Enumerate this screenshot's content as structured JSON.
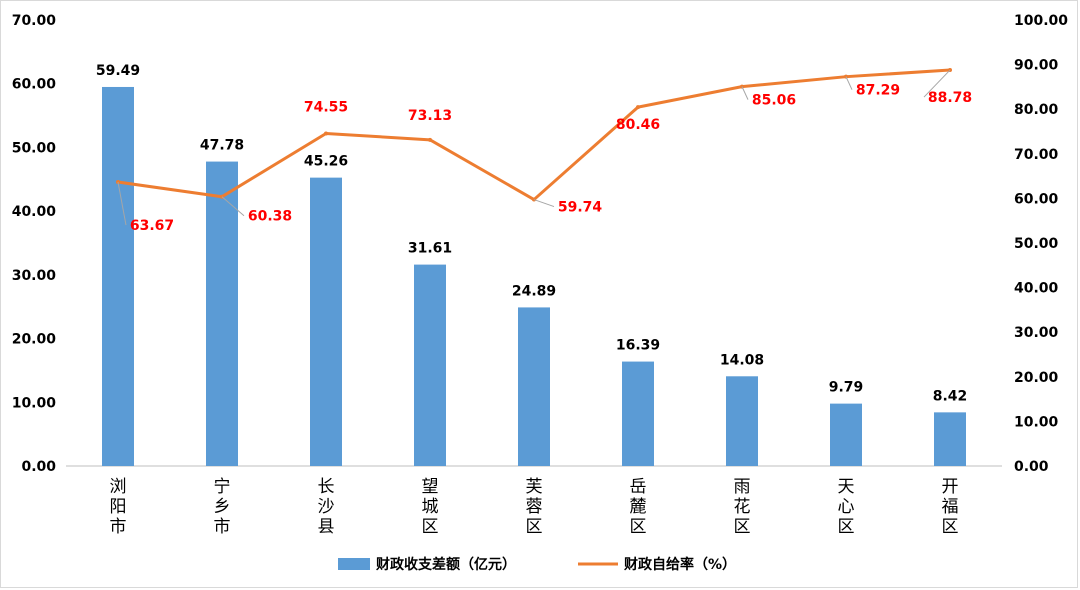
{
  "chart_data": {
    "type": "bar+line",
    "categories": [
      "浏阳市",
      "宁乡市",
      "长沙县",
      "望城区",
      "芙蓉区",
      "岳麓区",
      "雨花区",
      "天心区",
      "开福区"
    ],
    "series": [
      {
        "name": "财政收支差额（亿元）",
        "type": "bar",
        "axis": "left",
        "values": [
          59.49,
          47.78,
          45.26,
          31.61,
          24.89,
          16.39,
          14.08,
          9.79,
          8.42
        ],
        "labels": [
          "59.49",
          "47.78",
          "45.26",
          "31.61",
          "24.89",
          "16.39",
          "14.08",
          "9.79",
          "8.42"
        ],
        "color": "#5b9bd5"
      },
      {
        "name": "财政自给率（%）",
        "type": "line",
        "axis": "right",
        "values": [
          63.67,
          60.38,
          74.55,
          73.13,
          59.74,
          80.46,
          85.06,
          87.29,
          88.78
        ],
        "labels": [
          "63.67",
          "60.38",
          "74.55",
          "73.13",
          "59.74",
          "80.46",
          "85.06",
          "87.29",
          "88.78"
        ],
        "color": "#ed7d31",
        "label_color": "#ff0000"
      }
    ],
    "y_left": {
      "min": 0,
      "max": 70,
      "step": 10,
      "ticks": [
        "0.00",
        "10.00",
        "20.00",
        "30.00",
        "40.00",
        "50.00",
        "60.00",
        "70.00"
      ]
    },
    "y_right": {
      "min": 0,
      "max": 100,
      "step": 10,
      "ticks": [
        "0.00",
        "10.00",
        "20.00",
        "30.00",
        "40.00",
        "50.00",
        "60.00",
        "70.00",
        "80.00",
        "90.00",
        "100.00"
      ]
    },
    "grid": false,
    "legend_position": "bottom"
  }
}
